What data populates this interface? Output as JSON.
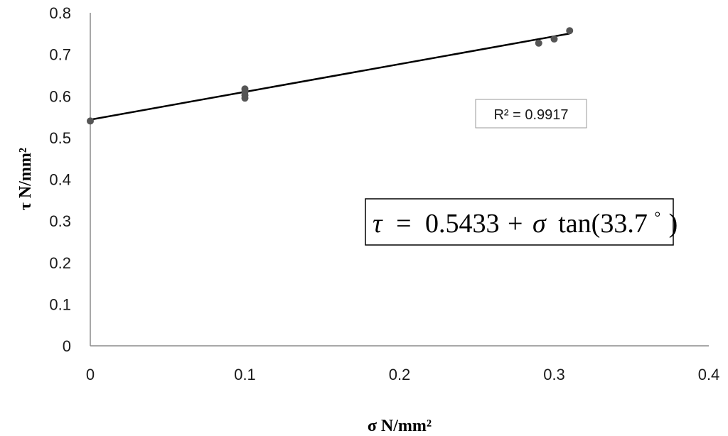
{
  "chart_data": {
    "type": "scatter",
    "xlabel": "σ N/mm²",
    "ylabel": "τ N/mm²",
    "xlim": [
      0,
      0.4
    ],
    "ylim": [
      0,
      0.8
    ],
    "x_ticks": [
      "0",
      "0.1",
      "0.2",
      "0.3",
      "0.4"
    ],
    "y_ticks": [
      "0",
      "0.1",
      "0.2",
      "0.3",
      "0.4",
      "0.5",
      "0.6",
      "0.7",
      "0.8"
    ],
    "grid": false,
    "legend": "none",
    "points": [
      {
        "x": 0.0,
        "y": 0.54
      },
      {
        "x": 0.1,
        "y": 0.595
      },
      {
        "x": 0.1,
        "y": 0.602
      },
      {
        "x": 0.1,
        "y": 0.61
      },
      {
        "x": 0.1,
        "y": 0.617
      },
      {
        "x": 0.29,
        "y": 0.727
      },
      {
        "x": 0.3,
        "y": 0.737
      },
      {
        "x": 0.31,
        "y": 0.757
      }
    ],
    "trendline": {
      "type": "linear",
      "x_start": 0.0,
      "x_end": 0.31,
      "intercept": 0.5433,
      "slope": 0.6669
    },
    "annotations": {
      "r_squared": "R² = 0.9917",
      "equation": {
        "lhs": "τ",
        "eq": "=",
        "number": "0.5433",
        "plus": "+",
        "sigma": "σ",
        "fn": "tan(33.7",
        "degree": "°",
        "close": ")"
      }
    },
    "colors": {
      "point": "#555555",
      "line": "#000000",
      "axis": "#8c8c8c"
    }
  }
}
